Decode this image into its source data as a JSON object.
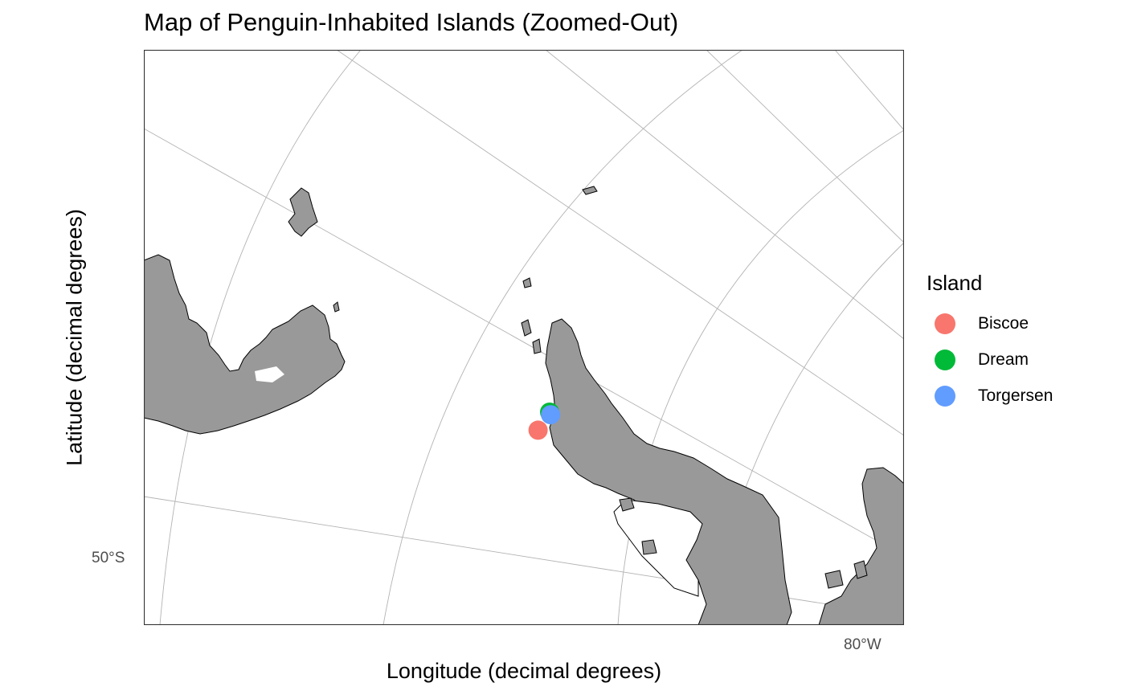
{
  "chart_data": {
    "type": "map",
    "title": "Map of Penguin-Inhabited Islands (Zoomed-Out)",
    "xlabel": "Longitude (decimal degrees)",
    "ylabel": "Latitude (decimal degrees)",
    "x_ticks": [
      "80°W"
    ],
    "y_ticks": [
      "50°S"
    ],
    "grid": true,
    "legend": {
      "title": "Island",
      "position": "right",
      "items": [
        {
          "name": "Biscoe",
          "color": "#F8766D"
        },
        {
          "name": "Dream",
          "color": "#00BA38"
        },
        {
          "name": "Torgersen",
          "color": "#619CFF"
        }
      ]
    },
    "points": [
      {
        "island": "Biscoe",
        "lon": -65.4,
        "lat": -65.4
      },
      {
        "island": "Dream",
        "lon": -64.2,
        "lat": -64.7
      },
      {
        "island": "Torgersen",
        "lon": -64.1,
        "lat": -64.8
      }
    ],
    "land_color": "#999999",
    "background_color": "#FFFFFF"
  }
}
